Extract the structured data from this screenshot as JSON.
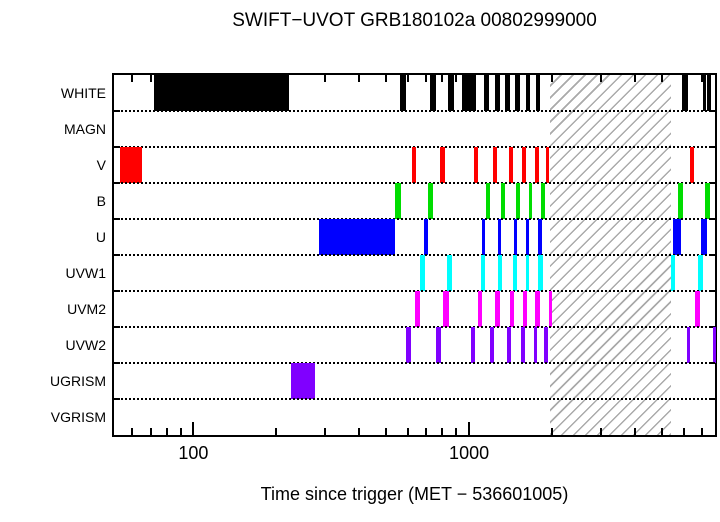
{
  "title": "SWIFT−UVOT GRB180102a 00802999000",
  "x_axis": {
    "label": "Time since trigger (MET − 536601005)"
  },
  "chart_data": {
    "type": "timeline",
    "title": "SWIFT−UVOT GRB180102a 00802999000",
    "xlabel": "Time since trigger (MET − 536601005)",
    "ylabel": "",
    "x_scale": "log",
    "xlim": [
      51.5,
      7800
    ],
    "x_major_ticks": [
      {
        "value": 100,
        "label": "100"
      },
      {
        "value": 1000,
        "label": "1000"
      }
    ],
    "x_minor_ticks": [
      60,
      70,
      80,
      90,
      200,
      300,
      400,
      500,
      600,
      700,
      800,
      900,
      2000,
      3000,
      4000,
      5000,
      6000,
      7000
    ],
    "grid": "dotted-row-dividers",
    "legend": "none",
    "gap_hatch": {
      "start": 1970,
      "end": 5390
    },
    "rows": [
      {
        "label": "WHITE",
        "color": "#000000",
        "intervals": [
          [
            72,
            223
          ],
          [
            562,
            591
          ],
          [
            721,
            758
          ],
          [
            840,
            883
          ],
          [
            939,
            1063
          ],
          [
            1133,
            1181
          ],
          [
            1238,
            1291
          ],
          [
            1346,
            1403
          ],
          [
            1471,
            1533
          ],
          [
            1612,
            1670
          ],
          [
            1751,
            1815
          ],
          [
            5910,
            6220
          ],
          [
            7035,
            7210
          ],
          [
            7290,
            7540
          ]
        ]
      },
      {
        "label": "MAGN",
        "color": "#000000",
        "intervals": []
      },
      {
        "label": "V",
        "color": "#ff0000",
        "intervals": [
          [
            54,
            65
          ],
          [
            619,
            642
          ],
          [
            784,
            817
          ],
          [
            1042,
            1078
          ],
          [
            1221,
            1262
          ],
          [
            1395,
            1442
          ],
          [
            1559,
            1606
          ],
          [
            1737,
            1790
          ],
          [
            1903,
            1956
          ],
          [
            6310,
            6570
          ]
        ]
      },
      {
        "label": "B",
        "color": "#00dd00",
        "intervals": [
          [
            539,
            565
          ],
          [
            711,
            738
          ],
          [
            1147,
            1188
          ],
          [
            1302,
            1346
          ],
          [
            1483,
            1533
          ],
          [
            1647,
            1698
          ],
          [
            1826,
            1887
          ],
          [
            5720,
            5990
          ],
          [
            7190,
            7450
          ]
        ]
      },
      {
        "label": "U",
        "color": "#0000ff",
        "intervals": [
          [
            285,
            539
          ],
          [
            686,
            711
          ],
          [
            1114,
            1146
          ],
          [
            1273,
            1309
          ],
          [
            1450,
            1490
          ],
          [
            1612,
            1656
          ],
          [
            1785,
            1841
          ],
          [
            5500,
            5860
          ],
          [
            6940,
            7320
          ]
        ]
      },
      {
        "label": "UVW1",
        "color": "#00ffff",
        "intervals": [
          [
            664,
            692
          ],
          [
            829,
            867
          ],
          [
            1100,
            1140
          ],
          [
            1273,
            1320
          ],
          [
            1442,
            1491
          ],
          [
            1602,
            1656
          ],
          [
            1785,
            1849
          ],
          [
            5390,
            5570
          ],
          [
            6750,
            7040
          ]
        ]
      },
      {
        "label": "UVM2",
        "color": "#ff00ff",
        "intervals": [
          [
            637,
            664
          ],
          [
            805,
            842
          ],
          [
            1078,
            1118
          ],
          [
            1244,
            1291
          ],
          [
            1413,
            1461
          ],
          [
            1572,
            1618
          ],
          [
            1741,
            1802
          ],
          [
            1956,
            2001
          ],
          [
            6620,
            6890
          ]
        ]
      },
      {
        "label": "UVW2",
        "color": "#8000ff",
        "intervals": [
          [
            591,
            615
          ],
          [
            758,
            790
          ],
          [
            1018,
            1055
          ],
          [
            1188,
            1232
          ],
          [
            1376,
            1419
          ],
          [
            1547,
            1590
          ],
          [
            1724,
            1767
          ],
          [
            1875,
            1930
          ],
          [
            6170,
            6350
          ],
          [
            7660,
            7800
          ]
        ]
      },
      {
        "label": "UGRISM",
        "color": "#8000ff",
        "intervals": [
          [
            225,
            277
          ]
        ]
      },
      {
        "label": "VGRISM",
        "color": "#8000ff",
        "intervals": []
      }
    ]
  }
}
